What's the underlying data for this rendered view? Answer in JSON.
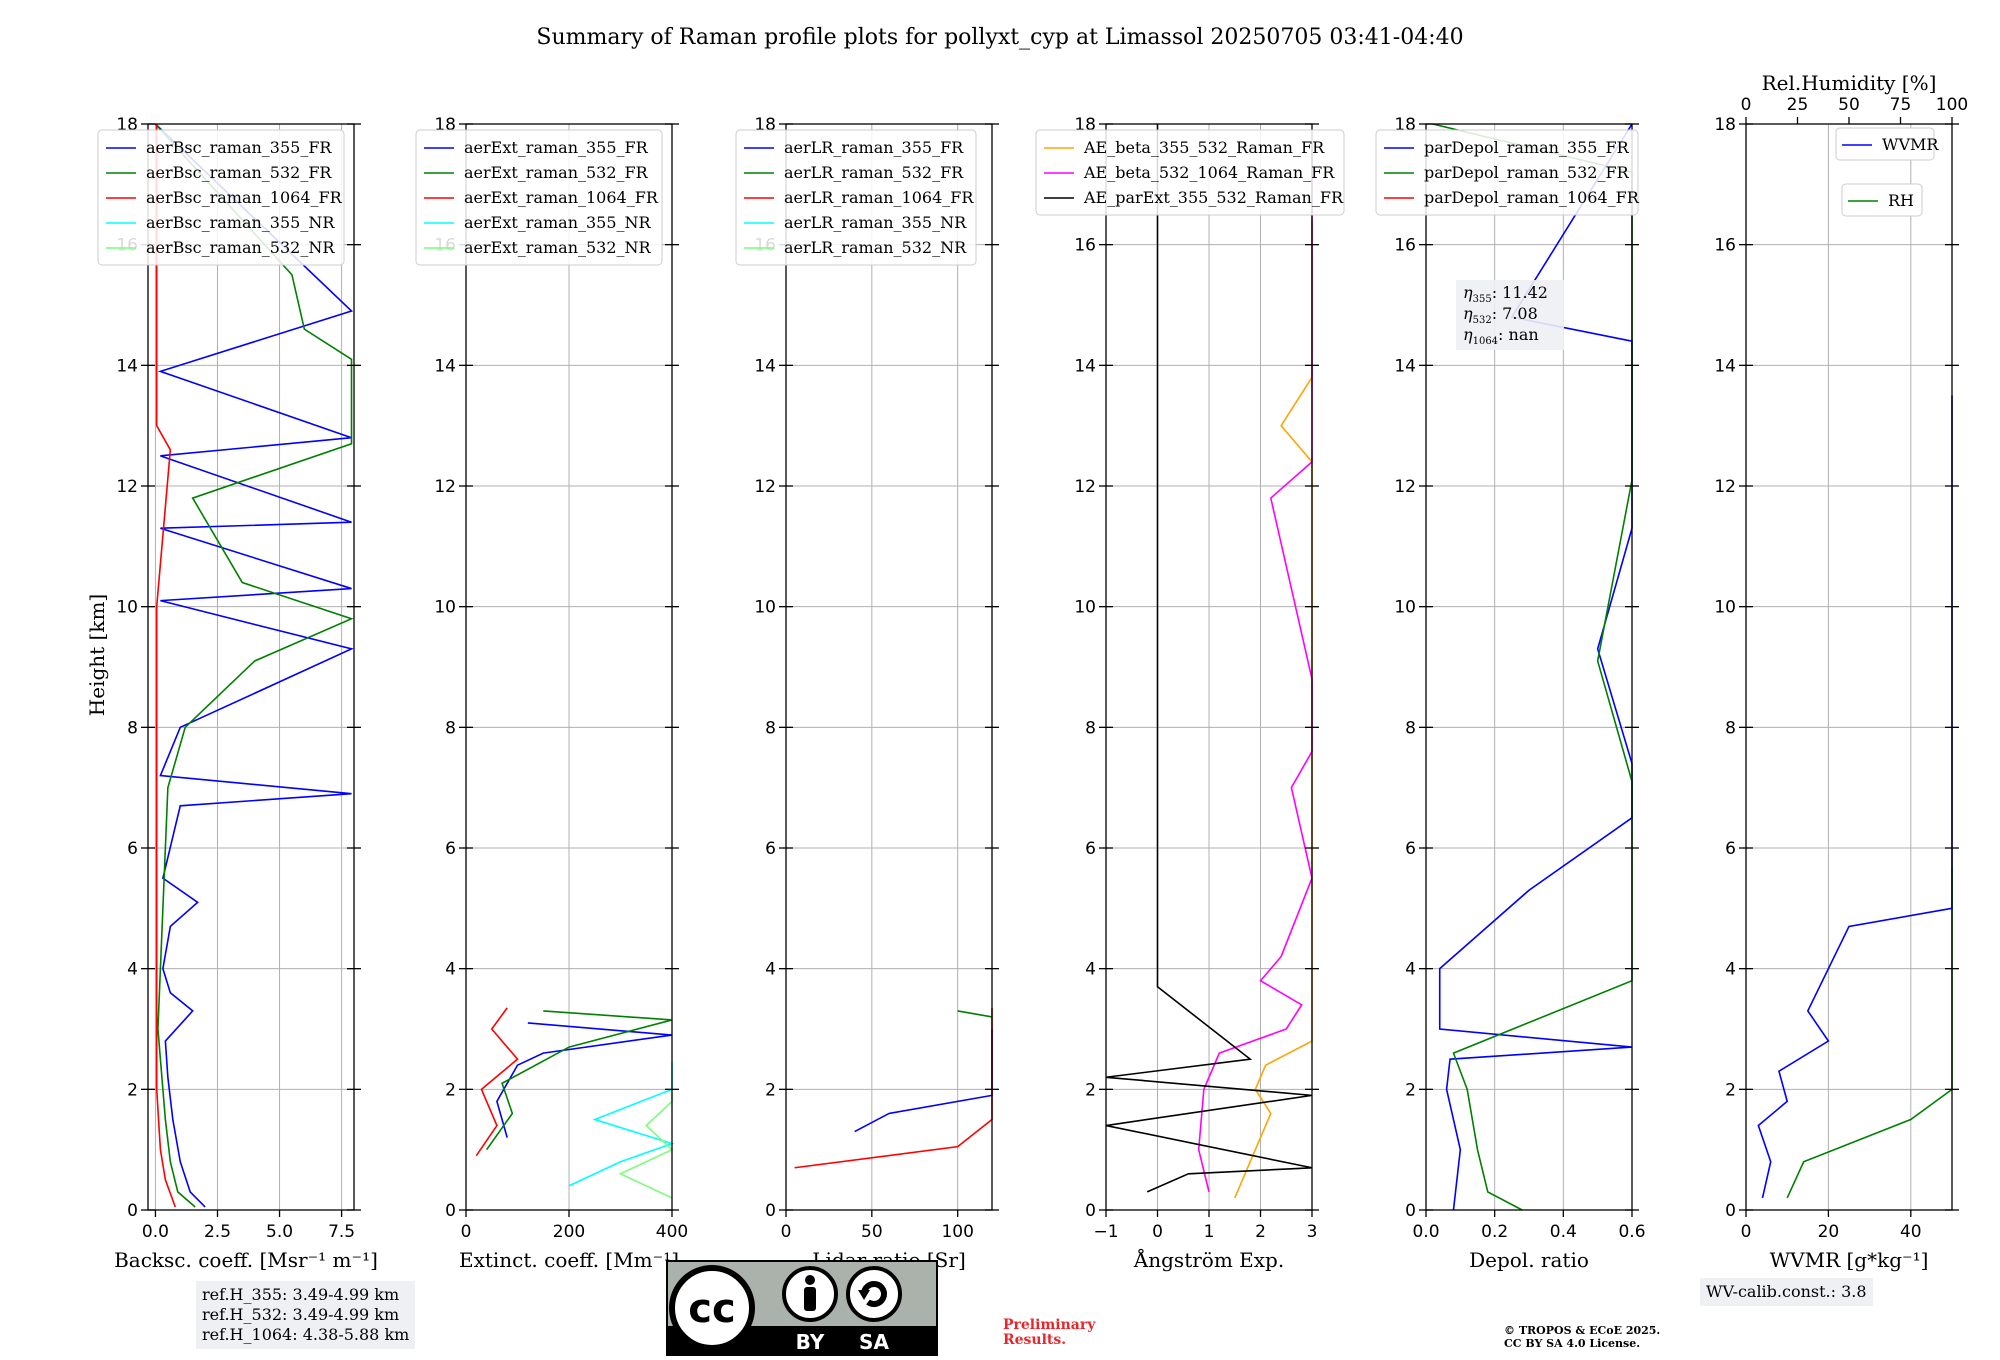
{
  "title": "Summary of Raman profile plots for pollyxt_cyp at Limassol 20250705 03:41-04:40",
  "ylabel": "Height [km]",
  "chart_data": [
    {
      "type": "line",
      "xlabel": "Backsc. coeff. [Msr⁻¹ m⁻¹]",
      "xlim": [
        -0.3,
        8
      ],
      "xticks": [
        "0.0",
        "2.5",
        "5.0",
        "7.5"
      ],
      "xtick_values": [
        0,
        2.5,
        5,
        7.5
      ],
      "ylim": [
        0,
        18
      ],
      "legend": [
        "aerBsc_raman_355_FR",
        "aerBsc_raman_532_FR",
        "aerBsc_raman_1064_FR",
        "aerBsc_raman_355_NR",
        "aerBsc_raman_532_NR"
      ],
      "series": [
        {
          "name": "aerBsc_raman_355_FR",
          "color": "#0000ff",
          "values": [
            [
              2.0,
              0.05
            ],
            [
              1.4,
              0.3
            ],
            [
              1.0,
              0.8
            ],
            [
              0.7,
              1.5
            ],
            [
              0.5,
              2.2
            ],
            [
              0.4,
              2.8
            ],
            [
              1.5,
              3.3
            ],
            [
              0.6,
              3.6
            ],
            [
              0.3,
              4.0
            ],
            [
              0.6,
              4.7
            ],
            [
              1.7,
              5.1
            ],
            [
              0.3,
              5.5
            ],
            [
              1.0,
              6.7
            ],
            [
              7.9,
              6.9
            ],
            [
              0.2,
              7.2
            ],
            [
              1.0,
              8.0
            ],
            [
              7.9,
              9.3
            ],
            [
              0.2,
              10.1
            ],
            [
              7.9,
              10.3
            ],
            [
              0.2,
              11.3
            ],
            [
              7.9,
              11.4
            ],
            [
              0.2,
              12.5
            ],
            [
              7.9,
              12.8
            ],
            [
              0.2,
              13.9
            ],
            [
              7.9,
              14.9
            ],
            [
              0.0,
              18.0
            ]
          ]
        },
        {
          "name": "aerBsc_raman_532_FR",
          "color": "#008000",
          "values": [
            [
              1.6,
              0.05
            ],
            [
              0.9,
              0.3
            ],
            [
              0.6,
              0.8
            ],
            [
              0.4,
              1.5
            ],
            [
              0.2,
              2.5
            ],
            [
              0.1,
              3.0
            ],
            [
              0.4,
              6.0
            ],
            [
              0.5,
              7.0
            ],
            [
              1.2,
              8.0
            ],
            [
              4.0,
              9.1
            ],
            [
              7.9,
              9.8
            ],
            [
              3.5,
              10.4
            ],
            [
              1.5,
              11.8
            ],
            [
              7.9,
              12.7
            ],
            [
              7.9,
              14.1
            ],
            [
              6.0,
              14.6
            ],
            [
              5.5,
              15.5
            ],
            [
              0.0,
              18.0
            ]
          ]
        },
        {
          "name": "aerBsc_raman_1064_FR",
          "color": "#ff0000",
          "values": [
            [
              0.8,
              0.05
            ],
            [
              0.4,
              0.5
            ],
            [
              0.2,
              1.0
            ],
            [
              0.05,
              2.0
            ],
            [
              0.05,
              10.0
            ],
            [
              0.6,
              12.6
            ],
            [
              0.05,
              13.0
            ],
            [
              0.05,
              18.0
            ]
          ]
        },
        {
          "name": "aerBsc_raman_355_NR",
          "color": "#00ffff",
          "values": []
        },
        {
          "name": "aerBsc_raman_532_NR",
          "color": "#7cfc7c",
          "values": []
        }
      ]
    },
    {
      "type": "line",
      "xlabel": "Extinct. coeff. [Mm⁻¹]",
      "xlim": [
        0,
        400
      ],
      "xticks": [
        "0",
        "200",
        "400"
      ],
      "xtick_values": [
        0,
        200,
        400
      ],
      "ylim": [
        0,
        18
      ],
      "legend": [
        "aerExt_raman_355_FR",
        "aerExt_raman_532_FR",
        "aerExt_raman_1064_FR",
        "aerExt_raman_355_NR",
        "aerExt_raman_532_NR"
      ],
      "series": [
        {
          "name": "aerExt_raman_355_FR",
          "color": "#0000ff",
          "values": [
            [
              80,
              1.2
            ],
            [
              60,
              1.8
            ],
            [
              100,
              2.4
            ],
            [
              150,
              2.6
            ],
            [
              400,
              2.9
            ],
            [
              120,
              3.1
            ]
          ]
        },
        {
          "name": "aerExt_raman_532_FR",
          "color": "#008000",
          "values": [
            [
              40,
              1.0
            ],
            [
              90,
              1.6
            ],
            [
              70,
              2.1
            ],
            [
              200,
              2.7
            ],
            [
              400,
              3.15
            ],
            [
              150,
              3.3
            ]
          ]
        },
        {
          "name": "aerExt_raman_1064_FR",
          "color": "#ff0000",
          "values": [
            [
              20,
              0.9
            ],
            [
              60,
              1.4
            ],
            [
              30,
              2.0
            ],
            [
              100,
              2.5
            ],
            [
              50,
              3.0
            ],
            [
              80,
              3.35
            ]
          ]
        },
        {
          "name": "aerExt_raman_355_NR",
          "color": "#00ffff",
          "values": [
            [
              200,
              0.4
            ],
            [
              300,
              0.8
            ],
            [
              400,
              1.1
            ],
            [
              250,
              1.5
            ],
            [
              400,
              2.0
            ],
            [
              400,
              2.45
            ]
          ]
        },
        {
          "name": "aerExt_raman_532_NR",
          "color": "#7cfc7c",
          "values": [
            [
              400,
              0.2
            ],
            [
              300,
              0.6
            ],
            [
              400,
              1.0
            ],
            [
              350,
              1.4
            ],
            [
              400,
              1.8
            ],
            [
              400,
              1.95
            ]
          ]
        }
      ]
    },
    {
      "type": "line",
      "xlabel": "Lidar ratio [Sr]",
      "xlim": [
        0,
        120
      ],
      "xticks": [
        "0",
        "50",
        "100"
      ],
      "xtick_values": [
        0,
        50,
        100
      ],
      "ylim": [
        0,
        18
      ],
      "legend": [
        "aerLR_raman_355_FR",
        "aerLR_raman_532_FR",
        "aerLR_raman_1064_FR",
        "aerLR_raman_355_NR",
        "aerLR_raman_532_NR"
      ],
      "series": [
        {
          "name": "aerLR_raman_355_FR",
          "color": "#0000ff",
          "values": [
            [
              40,
              1.3
            ],
            [
              60,
              1.6
            ],
            [
              120,
              1.9
            ],
            [
              120,
              2.4
            ],
            [
              120,
              2.8
            ],
            [
              120,
              3.0
            ]
          ]
        },
        {
          "name": "aerLR_raman_532_FR",
          "color": "#008000",
          "values": [
            [
              120,
              3.2
            ],
            [
              100,
              3.3
            ]
          ]
        },
        {
          "name": "aerLR_raman_1064_FR",
          "color": "#ff0000",
          "values": [
            [
              5,
              0.7
            ],
            [
              100,
              1.05
            ],
            [
              120,
              1.5
            ],
            [
              120,
              2.0
            ],
            [
              120,
              2.5
            ],
            [
              120,
              3.35
            ]
          ]
        },
        {
          "name": "aerLR_raman_355_NR",
          "color": "#00ffff",
          "values": []
        },
        {
          "name": "aerLR_raman_532_NR",
          "color": "#7cfc7c",
          "values": []
        }
      ]
    },
    {
      "type": "line",
      "xlabel": "Ångström Exp.",
      "xlim": [
        -1,
        3
      ],
      "xticks": [
        "−1",
        "0",
        "1",
        "2",
        "3"
      ],
      "xtick_values": [
        -1,
        0,
        1,
        2,
        3
      ],
      "ylim": [
        0,
        18
      ],
      "legend": [
        "AE_beta_355_532_Raman_FR",
        "AE_beta_532_1064_Raman_FR",
        "AE_parExt_355_532_Raman_FR"
      ],
      "series": [
        {
          "name": "AE_beta_355_532_Raman_FR",
          "color": "#ffa500",
          "values": [
            [
              1.5,
              0.2
            ],
            [
              1.8,
              0.8
            ],
            [
              2.2,
              1.6
            ],
            [
              1.9,
              2.0
            ],
            [
              2.1,
              2.4
            ],
            [
              3.0,
              2.8
            ],
            [
              3.0,
              4.0
            ],
            [
              3.0,
              5.4
            ],
            [
              3.0,
              7.2
            ],
            [
              3.0,
              9.4
            ],
            [
              3.0,
              10.5
            ],
            [
              3.0,
              12.4
            ],
            [
              2.4,
              13.0
            ],
            [
              3.0,
              13.8
            ],
            [
              3.0,
              14.6
            ],
            [
              3.0,
              15.6
            ],
            [
              3.0,
              16.4
            ]
          ]
        },
        {
          "name": "AE_beta_532_1064_Raman_FR",
          "color": "#ff00ff",
          "values": [
            [
              1.0,
              0.3
            ],
            [
              0.8,
              1.0
            ],
            [
              0.9,
              2.0
            ],
            [
              1.2,
              2.6
            ],
            [
              2.5,
              3.0
            ],
            [
              2.8,
              3.4
            ],
            [
              2.0,
              3.8
            ],
            [
              2.4,
              4.2
            ],
            [
              3.0,
              5.5
            ],
            [
              2.6,
              7.0
            ],
            [
              3.0,
              7.6
            ],
            [
              3.0,
              8.8
            ],
            [
              2.2,
              11.8
            ],
            [
              3.0,
              12.4
            ],
            [
              3.0,
              14.4
            ],
            [
              3.0,
              15.4
            ],
            [
              3.0,
              17.6
            ]
          ]
        },
        {
          "name": "AE_parExt_355_532_Raman_FR",
          "color": "#000000",
          "values": [
            [
              -0.2,
              0.3
            ],
            [
              0.6,
              0.6
            ],
            [
              3.0,
              0.7
            ],
            [
              -1.0,
              1.4
            ],
            [
              3.0,
              1.9
            ],
            [
              -1.0,
              2.2
            ],
            [
              1.8,
              2.5
            ],
            [
              0.0,
              3.7
            ],
            [
              0.0,
              18.0
            ]
          ]
        }
      ]
    },
    {
      "type": "line",
      "xlabel": "Depol. ratio",
      "xlim": [
        0,
        0.6
      ],
      "xticks": [
        "0.0",
        "0.2",
        "0.4",
        "0.6"
      ],
      "xtick_values": [
        0,
        0.2,
        0.4,
        0.6
      ],
      "ylim": [
        0,
        18
      ],
      "legend": [
        "parDepol_raman_355_FR",
        "parDepol_raman_532_FR",
        "parDepol_raman_1064_FR"
      ],
      "series": [
        {
          "name": "parDepol_raman_355_FR",
          "color": "#0000ff",
          "values": [
            [
              0.08,
              0.0
            ],
            [
              0.1,
              1.0
            ],
            [
              0.06,
              2.0
            ],
            [
              0.07,
              2.5
            ],
            [
              0.6,
              2.7
            ],
            [
              0.04,
              3.0
            ],
            [
              0.04,
              4.0
            ],
            [
              0.3,
              5.3
            ],
            [
              0.6,
              6.5
            ],
            [
              0.6,
              7.4
            ],
            [
              0.5,
              9.3
            ],
            [
              0.6,
              11.3
            ],
            [
              0.6,
              12.6
            ],
            [
              0.6,
              14.4
            ],
            [
              0.25,
              14.8
            ],
            [
              0.6,
              18.0
            ]
          ]
        },
        {
          "name": "parDepol_raman_532_FR",
          "color": "#008000",
          "values": [
            [
              0.28,
              0.0
            ],
            [
              0.18,
              0.3
            ],
            [
              0.15,
              1.0
            ],
            [
              0.12,
              2.0
            ],
            [
              0.08,
              2.6
            ],
            [
              0.6,
              3.8
            ],
            [
              0.6,
              5.6
            ],
            [
              0.6,
              7.1
            ],
            [
              0.5,
              9.1
            ],
            [
              0.6,
              12.1
            ],
            [
              0.6,
              14.6
            ],
            [
              0.6,
              17.2
            ],
            [
              0.02,
              18.0
            ]
          ]
        },
        {
          "name": "parDepol_raman_1064_FR",
          "color": "#ff0000",
          "values": []
        }
      ],
      "annotations": [
        {
          "label": "η355",
          "sub": "355",
          "value": "11.42"
        },
        {
          "label": "η532",
          "sub": "532",
          "value": "7.08"
        },
        {
          "label": "η1064",
          "sub": "1064",
          "value": "nan"
        }
      ]
    },
    {
      "type": "line",
      "xlabel": "WVMR [g*kg⁻¹]",
      "xlim": [
        0,
        50
      ],
      "xticks": [
        "0",
        "20",
        "40"
      ],
      "xtick_values": [
        0,
        20,
        40
      ],
      "top_axis": {
        "label": "Rel.Humidity [%]",
        "xlim": [
          0,
          100
        ],
        "xticks": [
          "0",
          "25",
          "50",
          "75",
          "100"
        ],
        "xtick_values": [
          0,
          25,
          50,
          75,
          100
        ]
      },
      "ylim": [
        0,
        18
      ],
      "legend": [
        "WVMR",
        "RH"
      ],
      "series": [
        {
          "name": "WVMR",
          "color": "#0000ff",
          "values": [
            [
              4,
              0.2
            ],
            [
              6,
              0.8
            ],
            [
              3,
              1.4
            ],
            [
              10,
              1.8
            ],
            [
              8,
              2.3
            ],
            [
              20,
              2.8
            ],
            [
              15,
              3.3
            ],
            [
              25,
              4.7
            ],
            [
              50,
              5.0
            ],
            [
              50,
              13.5
            ]
          ]
        },
        {
          "name": "RH",
          "color": "#008000",
          "values": [
            [
              10,
              0.2
            ],
            [
              14,
              0.8
            ],
            [
              40,
              1.5
            ],
            [
              50,
              2.0
            ],
            [
              50,
              2.8
            ],
            [
              50,
              3.4
            ],
            [
              50,
              4.1
            ],
            [
              50,
              5.7
            ]
          ]
        }
      ]
    }
  ],
  "yticks": [
    "0",
    "2",
    "4",
    "6",
    "8",
    "10",
    "12",
    "14",
    "16",
    "18"
  ],
  "ref_box": [
    "ref.H_355: 3.49-4.99 km",
    "ref.H_532: 3.49-4.99 km",
    "ref.H_1064: 4.38-5.88 km"
  ],
  "wv_calib": "WV-calib.const.: 3.8",
  "preliminary": [
    "Preliminary",
    "Results."
  ],
  "copyright": [
    "© TROPOS & ECoE 2025.",
    "CC BY SA 4.0 License."
  ],
  "badge": {
    "cc": "cc",
    "by": "BY",
    "sa": "SA"
  }
}
